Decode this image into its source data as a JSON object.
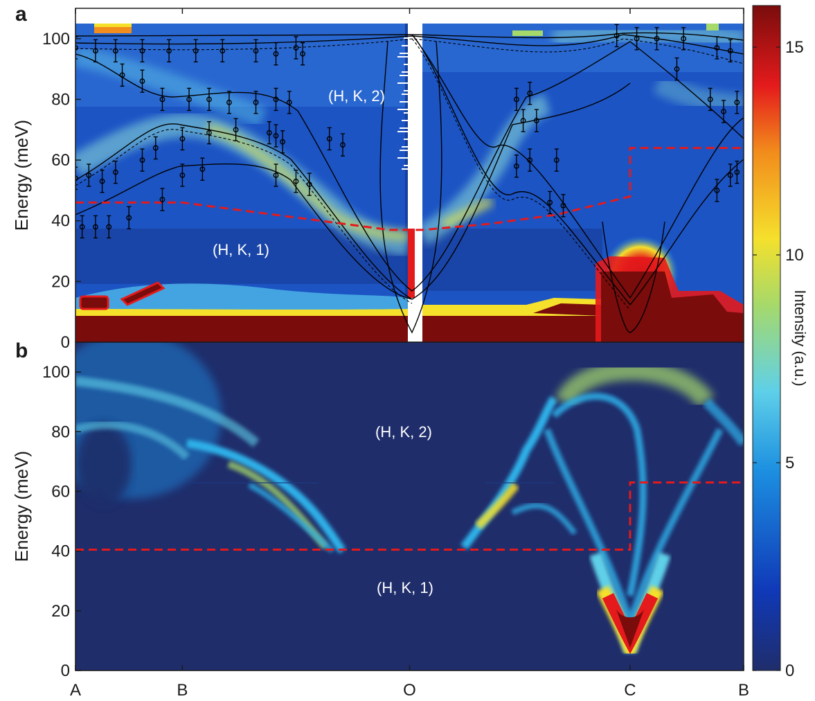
{
  "chart_data": [
    {
      "type": "heatmap",
      "panel_label": "a",
      "ylabel": "Energy (meV)",
      "ylim": [
        0,
        110
      ],
      "yticks": [
        0,
        20,
        40,
        60,
        80,
        100
      ],
      "q_ticks": [
        "A",
        "B",
        "O",
        "C",
        "B"
      ],
      "annotations": [
        "(H, K, 2)",
        "(H, K, 1)"
      ],
      "boundary_dashed": [
        [
          0,
          46
        ],
        [
          0.16,
          46
        ],
        [
          0.47,
          37
        ],
        [
          0.52,
          37
        ],
        [
          0.62,
          39
        ],
        [
          0.72,
          42
        ],
        [
          0.83,
          48
        ],
        [
          0.83,
          64
        ],
        [
          1.0,
          64
        ]
      ],
      "series": [
        {
          "name": "",
          "style": "points",
          "points": [
            [
              0.0,
              54
            ],
            [
              0.02,
              55
            ],
            [
              0.04,
              53
            ],
            [
              0.06,
              56
            ],
            [
              0.1,
              60
            ],
            [
              0.12,
              64
            ],
            [
              0.16,
              67
            ],
            [
              0.2,
              69
            ],
            [
              0.24,
              70
            ],
            [
              0.3,
              68
            ],
            [
              0.38,
              67
            ],
            [
              0.4,
              65
            ]
          ]
        },
        {
          "name": "",
          "style": "points",
          "points": [
            [
              0.01,
              38
            ],
            [
              0.03,
              38
            ],
            [
              0.05,
              38
            ],
            [
              0.08,
              41
            ],
            [
              0.13,
              47
            ],
            [
              0.16,
              55
            ],
            [
              0.19,
              57
            ]
          ]
        },
        {
          "name": "",
          "style": "points",
          "points": [
            [
              0.0,
              97
            ],
            [
              0.03,
              96
            ],
            [
              0.06,
              96
            ],
            [
              0.1,
              96
            ],
            [
              0.14,
              96
            ],
            [
              0.18,
              96
            ],
            [
              0.22,
              96
            ],
            [
              0.27,
              96
            ],
            [
              0.3,
              95
            ],
            [
              0.33,
              97
            ],
            [
              0.34,
              95
            ]
          ]
        },
        {
          "name": "",
          "style": "points",
          "points": [
            [
              0.07,
              88
            ],
            [
              0.1,
              86
            ],
            [
              0.13,
              80
            ],
            [
              0.17,
              80
            ],
            [
              0.2,
              80
            ],
            [
              0.23,
              79
            ],
            [
              0.27,
              79
            ]
          ]
        },
        {
          "name": "",
          "style": "points",
          "points": [
            [
              0.3,
              80
            ],
            [
              0.32,
              79
            ],
            [
              0.29,
              69
            ],
            [
              0.31,
              66
            ],
            [
              0.3,
              55
            ],
            [
              0.33,
              53
            ],
            [
              0.35,
              52
            ]
          ]
        },
        {
          "name": "",
          "style": "points",
          "points": [
            [
              0.66,
              80
            ],
            [
              0.68,
              82
            ],
            [
              0.67,
              73
            ],
            [
              0.69,
              73
            ],
            [
              0.66,
              58
            ],
            [
              0.68,
              60
            ],
            [
              0.72,
              60
            ],
            [
              0.71,
              46
            ],
            [
              0.73,
              45
            ]
          ]
        },
        {
          "name": "",
          "style": "points",
          "points": [
            [
              0.81,
              101
            ],
            [
              0.84,
              100
            ],
            [
              0.87,
              100
            ],
            [
              0.91,
              100
            ],
            [
              0.96,
              97
            ],
            [
              0.98,
              96
            ],
            [
              0.9,
              90
            ],
            [
              0.95,
              80
            ],
            [
              0.97,
              76
            ],
            [
              0.99,
              79
            ],
            [
              0.96,
              50
            ],
            [
              0.98,
              55
            ],
            [
              0.99,
              56
            ]
          ]
        }
      ]
    },
    {
      "type": "heatmap",
      "panel_label": "b",
      "xlabel": "",
      "ylabel": "Energy (meV)",
      "ylim": [
        0,
        110
      ],
      "yticks": [
        0,
        20,
        40,
        60,
        80,
        100
      ],
      "q_ticks": [
        "A",
        "B",
        "O",
        "C",
        "B"
      ],
      "annotations": [
        "(H, K, 2)",
        "(H, K, 1)"
      ],
      "boundary_dashed": [
        [
          0,
          40.5
        ],
        [
          0.83,
          40.5
        ],
        [
          0.83,
          63
        ],
        [
          1.0,
          63
        ]
      ]
    }
  ],
  "colorbar": {
    "label": "Intensity (a.u.)",
    "ticks": [
      0,
      5,
      10,
      15
    ],
    "range": [
      0,
      16
    ],
    "colormap": [
      "#1f2d6b",
      "#1039b8",
      "#1c8fe0",
      "#5fd0e8",
      "#a6d96a",
      "#f5e02c",
      "#f28c1c",
      "#e41a1c",
      "#7a0c0c"
    ]
  }
}
